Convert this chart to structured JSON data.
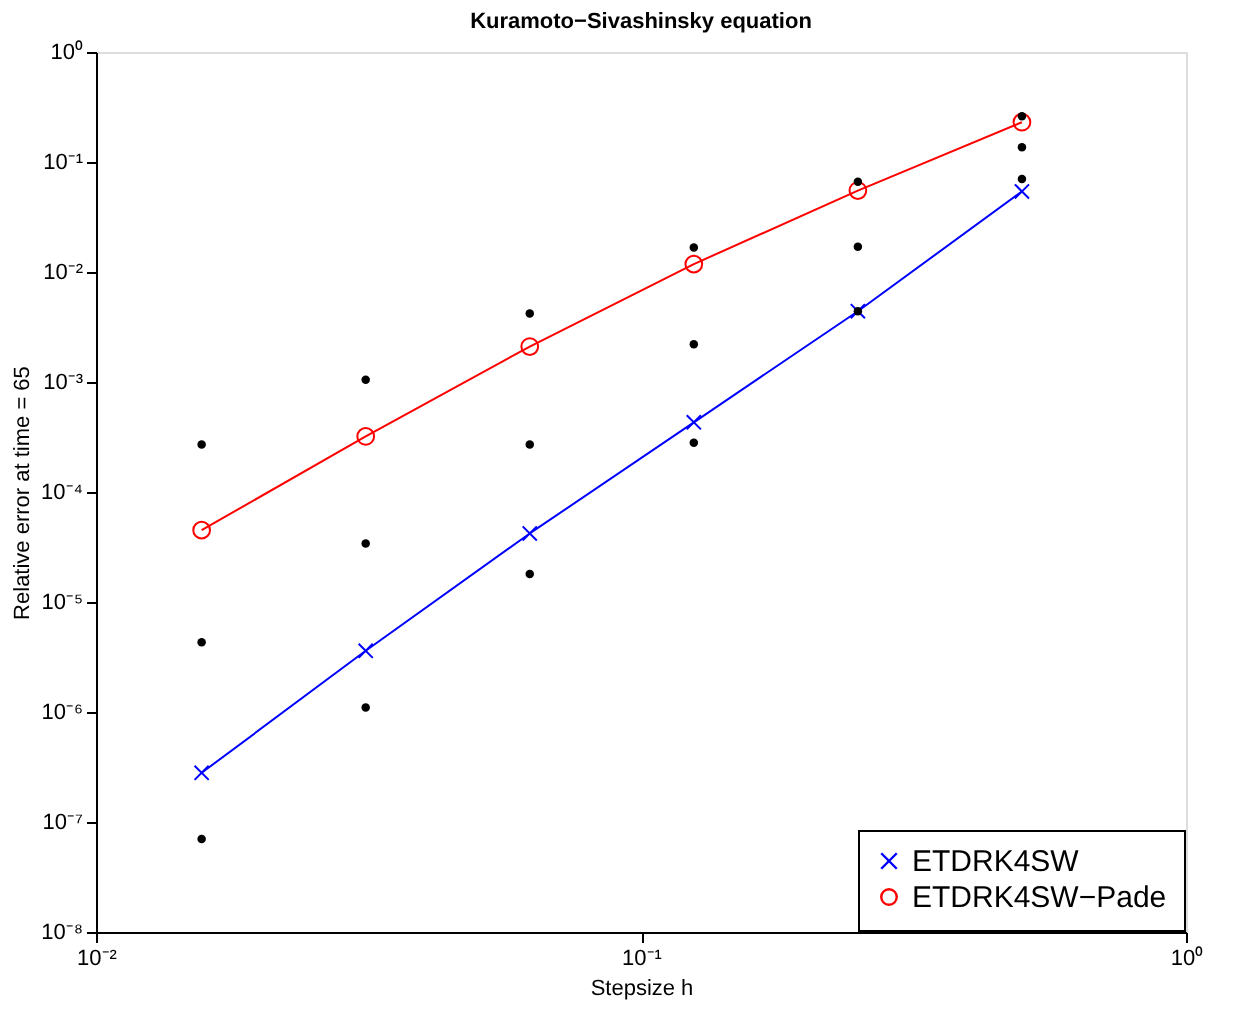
{
  "chart_data": {
    "type": "line",
    "title": "Kuramoto−Sivashinsky equation",
    "xlabel": "Stepsize h",
    "ylabel": "Relative error at time = 65",
    "log": "xy",
    "grid": false,
    "legend": "bottom right",
    "line_style": "solid",
    "x": [
      0.015625,
      0.03125,
      0.0625,
      0.125,
      0.25,
      0.5
    ],
    "xlim": [
      0.01,
      1
    ],
    "xticks": [
      {
        "value": 0.01,
        "label": "10⁻²"
      },
      {
        "value": 0.1,
        "label": "10⁻¹"
      },
      {
        "value": 1,
        "label": "10⁰"
      }
    ],
    "ylim": [
      1e-08,
      1
    ],
    "yticks": [
      {
        "value": 1e-08,
        "label": "10⁻⁸"
      },
      {
        "value": 1e-07,
        "label": "10⁻⁷"
      },
      {
        "value": 1e-06,
        "label": "10⁻⁶"
      },
      {
        "value": 1e-05,
        "label": "10⁻⁵"
      },
      {
        "value": 0.0001,
        "label": "10⁻⁴"
      },
      {
        "value": 0.001,
        "label": "10⁻³"
      },
      {
        "value": 0.01,
        "label": "10⁻²"
      },
      {
        "value": 0.1,
        "label": "10⁻¹"
      },
      {
        "value": 1,
        "label": "10⁰"
      }
    ],
    "series": [
      {
        "name": "ETDRK4SW",
        "color": "#0000ff",
        "marker": "cross",
        "values": [
          2.8e-07,
          3.6e-06,
          4.2e-05,
          0.00043,
          0.0044,
          0.054
        ]
      },
      {
        "name": "ETDRK4SW−Pade",
        "color": "#ff0000",
        "marker": "circle",
        "values": [
          4.5e-05,
          0.00032,
          0.0021,
          0.0118,
          0.055,
          0.23
        ]
      },
      {
        "type": "scatter",
        "color": "#000000",
        "marker": "circle",
        "x": [
          0.015625,
          0.015625,
          0.015625,
          0.03125,
          0.03125,
          0.03125,
          0.0625,
          0.0625,
          0.0625,
          0.125,
          0.125,
          0.125,
          0.25,
          0.25,
          0.25,
          0.5,
          0.5,
          0.5
        ],
        "values": [
          0.00027,
          4.3e-06,
          7e-08,
          0.00105,
          3.4e-05,
          1.1e-06,
          0.0042,
          0.00027,
          1.8e-05,
          0.0167,
          0.0022,
          0.00028,
          0.066,
          0.017,
          0.0044,
          0.26,
          0.136,
          0.07
        ]
      }
    ]
  }
}
